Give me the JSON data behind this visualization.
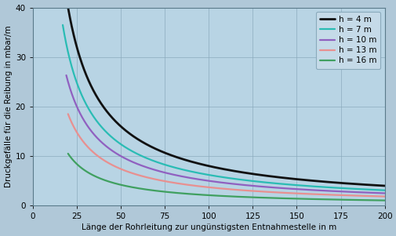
{
  "xlabel": "Länge der Rohrleitung zur ungünstigsten Entnahmestelle in m",
  "ylabel": "Druckgefälle für die Reibung in mbar/m",
  "xlim": [
    0,
    200
  ],
  "ylim": [
    0,
    40
  ],
  "xticks": [
    0,
    25,
    50,
    75,
    100,
    125,
    150,
    175,
    200
  ],
  "yticks": [
    0,
    10,
    20,
    30,
    40
  ],
  "fig_bg_color": "#b0c8d8",
  "plot_bg_color": "#b8d4e4",
  "grid_color": "#8aaabc",
  "series": [
    {
      "label": "h = 4 m",
      "color": "#111111",
      "linewidth": 2.0,
      "C": 800,
      "x_start": 13
    },
    {
      "label": "h = 7 m",
      "color": "#2abcb4",
      "linewidth": 1.6,
      "C": 620,
      "x_start": 17
    },
    {
      "label": "h = 10 m",
      "color": "#9060c0",
      "linewidth": 1.6,
      "C": 500,
      "x_start": 19
    },
    {
      "label": "h = 13 m",
      "color": "#e89090",
      "linewidth": 1.6,
      "C": 370,
      "x_start": 20
    },
    {
      "label": "h = 16 m",
      "color": "#40a060",
      "linewidth": 1.6,
      "C": 210,
      "x_start": 20
    }
  ],
  "font_size_labels": 7.5,
  "font_size_ticks": 7.5,
  "font_size_legend": 7.5,
  "legend_facecolor": "#c5dae8",
  "legend_edgecolor": "#8aaabc"
}
